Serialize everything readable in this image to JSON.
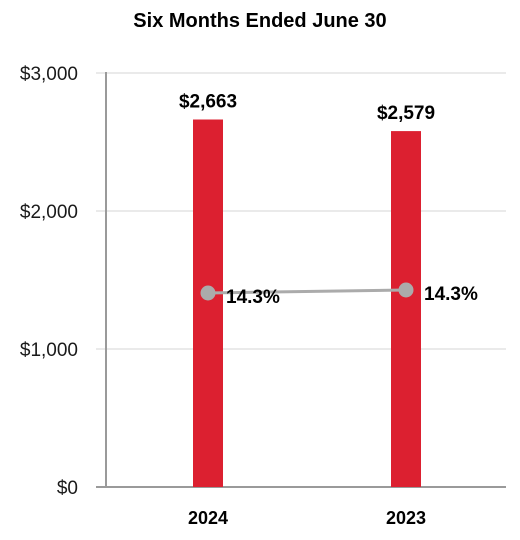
{
  "chart_data": {
    "type": "bar",
    "title": "Six Months Ended June 30",
    "categories": [
      "2024",
      "2023"
    ],
    "series": [
      {
        "type": "bar",
        "values": [
          2663,
          2579
        ],
        "labels": [
          "$2,663",
          "$2,579"
        ],
        "color": "#dc2030"
      },
      {
        "type": "line",
        "values": [
          14.3,
          14.3
        ],
        "labels": [
          "14.3%",
          "14.3%"
        ],
        "color": "#ababab"
      }
    ],
    "y_ticks": [
      "$0",
      "$1,000",
      "$2,000",
      "$3,000"
    ],
    "ylim": [
      0,
      3000
    ],
    "grid": true,
    "legend": "none"
  }
}
